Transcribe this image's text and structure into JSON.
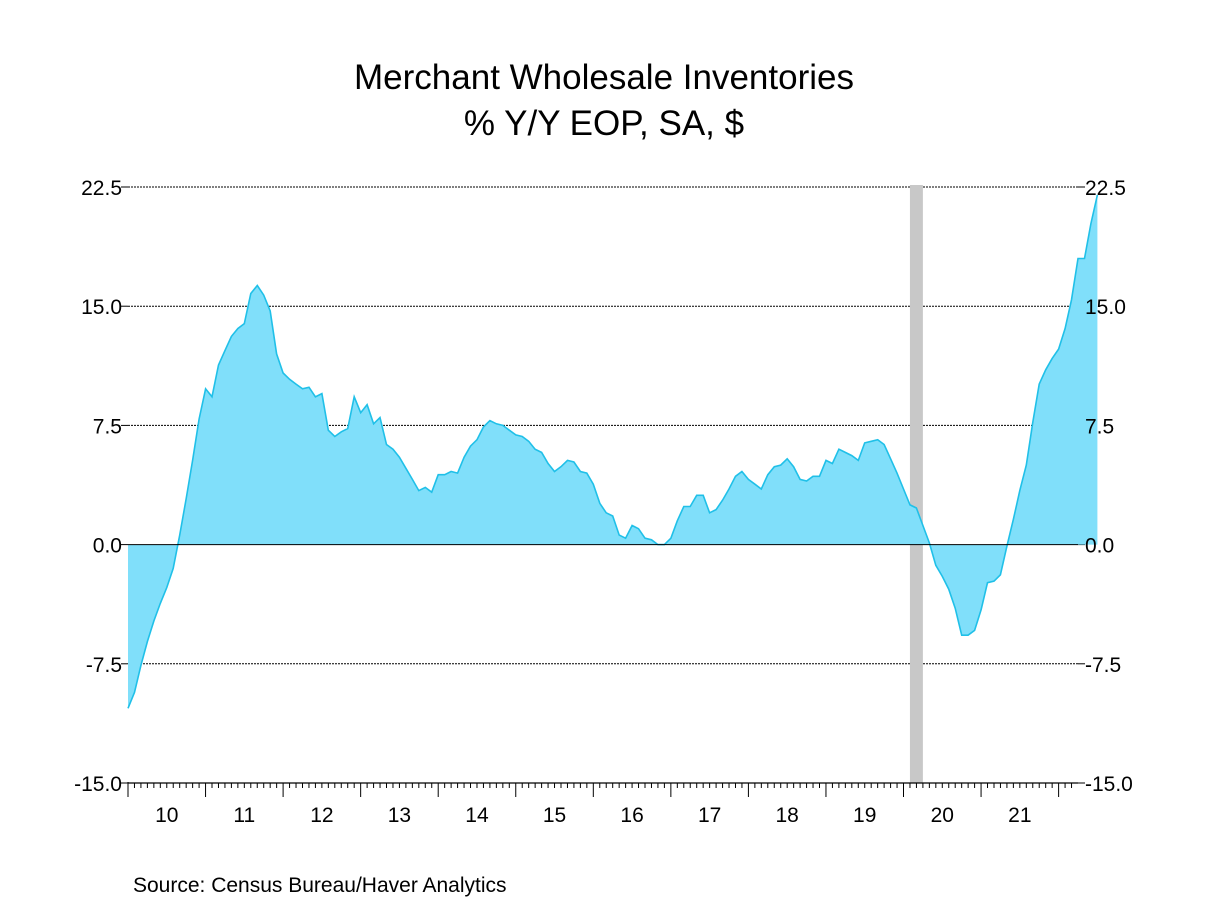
{
  "chart_data": {
    "type": "area",
    "title": "Merchant Wholesale Inventories",
    "subtitle": "% Y/Y   EOP, SA, $",
    "source": "Source:  Census Bureau/Haver Analytics",
    "y_ticks": [
      "22.5",
      "15.0",
      "7.5",
      "0.0",
      "-7.5",
      "-15.0"
    ],
    "y_tick_values": [
      22.5,
      15.0,
      7.5,
      0.0,
      -7.5,
      -15.0
    ],
    "ylim": [
      -15.0,
      22.5
    ],
    "x_ticks": [
      "10",
      "11",
      "12",
      "13",
      "14",
      "15",
      "16",
      "17",
      "18",
      "19",
      "20",
      "21"
    ],
    "x_start_year": 2010,
    "x_end_year": 2022.25,
    "grid": true,
    "colors": {
      "area": "#80dffa",
      "line": "#20c0e8",
      "recession": "#c8c8c8"
    },
    "recession": {
      "start": 2020.083,
      "end": 2020.25
    },
    "series": [
      {
        "frequency": "monthly",
        "start": "2010-01",
        "values": [
          -10.3,
          -9.3,
          -7.6,
          -6.1,
          -4.8,
          -3.7,
          -2.7,
          -1.5,
          0.6,
          2.9,
          5.3,
          7.9,
          9.8,
          9.3,
          11.3,
          12.2,
          13.1,
          13.6,
          13.9,
          15.8,
          16.3,
          15.7,
          14.7,
          12.0,
          10.8,
          10.4,
          10.1,
          9.8,
          9.9,
          9.3,
          9.5,
          7.2,
          6.8,
          7.1,
          7.3,
          9.3,
          8.3,
          8.8,
          7.6,
          8.0,
          6.3,
          6.0,
          5.5,
          4.8,
          4.1,
          3.4,
          3.6,
          3.3,
          4.4,
          4.4,
          4.6,
          4.5,
          5.5,
          6.2,
          6.6,
          7.4,
          7.8,
          7.6,
          7.5,
          7.2,
          6.9,
          6.8,
          6.5,
          6.0,
          5.8,
          5.1,
          4.6,
          4.9,
          5.3,
          5.2,
          4.6,
          4.5,
          3.8,
          2.6,
          2.0,
          1.8,
          0.6,
          0.4,
          1.2,
          1.0,
          0.4,
          0.3,
          0.0,
          0.0,
          0.4,
          1.5,
          2.4,
          2.4,
          3.1,
          3.1,
          2.0,
          2.2,
          2.8,
          3.5,
          4.3,
          4.6,
          4.1,
          3.8,
          3.5,
          4.4,
          4.9,
          5.0,
          5.4,
          4.9,
          4.1,
          4.0,
          4.3,
          4.3,
          5.3,
          5.1,
          6.0,
          5.8,
          5.6,
          5.3,
          6.4,
          6.5,
          6.6,
          6.3,
          5.4,
          4.5,
          3.5,
          2.5,
          2.3,
          1.2,
          0.1,
          -1.3,
          -2.0,
          -2.8,
          -4.0,
          -5.7,
          -5.7,
          -5.4,
          -4.1,
          -2.4,
          -2.3,
          -1.9,
          -0.1,
          1.6,
          3.4,
          5.0,
          7.7,
          10.1,
          11.0,
          11.7,
          12.3,
          13.6,
          15.4,
          18.0,
          18.0,
          20.2,
          22.0
        ]
      }
    ]
  }
}
